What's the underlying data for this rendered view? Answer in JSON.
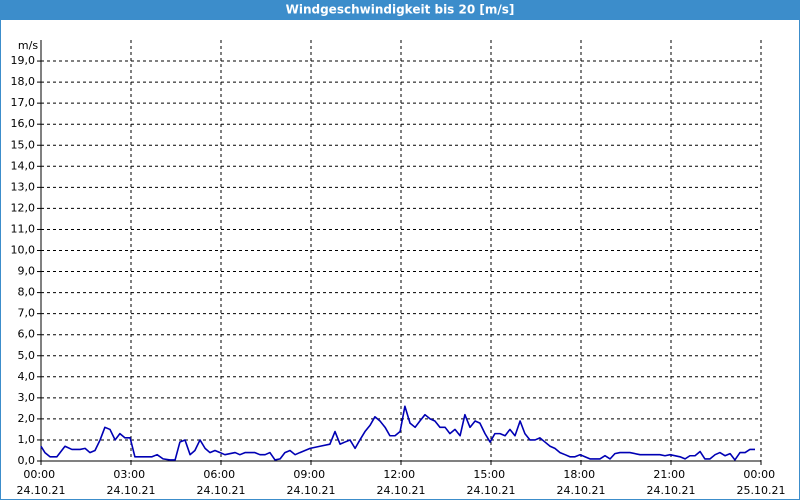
{
  "chart_data": {
    "type": "line",
    "title": "Windgeschwindigkeit bis 20 [m/s]",
    "y_label": "m/s",
    "xlim": [
      0,
      24
    ],
    "ylim": [
      0,
      20
    ],
    "grid": true,
    "xticks": [
      {
        "value": 0,
        "label": "00:00 24.10.21"
      },
      {
        "value": 3,
        "label": "03:00 24.10.21"
      },
      {
        "value": 6,
        "label": "06:00 24.10.21"
      },
      {
        "value": 9,
        "label": "09:00 24.10.21"
      },
      {
        "value": 12,
        "label": "12:00 24.10.21"
      },
      {
        "value": 15,
        "label": "15:00 24.10.21"
      },
      {
        "value": 18,
        "label": "18:00 24.10.21"
      },
      {
        "value": 21,
        "label": "21:00 24.10.21"
      },
      {
        "value": 24,
        "label": "00:00 25.10.21"
      }
    ],
    "yticks": [
      {
        "value": 0,
        "label": "0,0"
      },
      {
        "value": 1,
        "label": "1,0"
      },
      {
        "value": 2,
        "label": "2,0"
      },
      {
        "value": 3,
        "label": "3,0"
      },
      {
        "value": 4,
        "label": "4,0"
      },
      {
        "value": 5,
        "label": "5,0"
      },
      {
        "value": 6,
        "label": "6,0"
      },
      {
        "value": 7,
        "label": "7,0"
      },
      {
        "value": 8,
        "label": "8,0"
      },
      {
        "value": 9,
        "label": "9,0"
      },
      {
        "value": 10,
        "label": "10,0"
      },
      {
        "value": 11,
        "label": "11,0"
      },
      {
        "value": 12,
        "label": "12,0"
      },
      {
        "value": 13,
        "label": "13,0"
      },
      {
        "value": 14,
        "label": "14,0"
      },
      {
        "value": 15,
        "label": "15,0"
      },
      {
        "value": 16,
        "label": "16,0"
      },
      {
        "value": 17,
        "label": "17,0"
      },
      {
        "value": 18,
        "label": "18,0"
      },
      {
        "value": 19,
        "label": "19,0"
      }
    ],
    "color": "#0000b4",
    "x": [
      0,
      0.13,
      0.3,
      0.53,
      0.8,
      1.03,
      1.3,
      1.47,
      1.63,
      1.8,
      1.97,
      2.13,
      2.3,
      2.47,
      2.63,
      2.8,
      2.97,
      3.13,
      3.47,
      3.7,
      3.87,
      4.07,
      4.3,
      4.47,
      4.63,
      4.8,
      4.97,
      5.13,
      5.3,
      5.47,
      5.63,
      5.8,
      5.97,
      6.13,
      6.47,
      6.63,
      6.8,
      7.13,
      7.3,
      7.47,
      7.63,
      7.8,
      7.97,
      8.13,
      8.3,
      8.47,
      8.63,
      8.97,
      9.3,
      9.63,
      9.8,
      9.97,
      10.13,
      10.3,
      10.47,
      10.63,
      10.8,
      10.97,
      11.13,
      11.3,
      11.47,
      11.63,
      11.8,
      11.97,
      12.13,
      12.3,
      12.47,
      12.63,
      12.8,
      12.97,
      13.13,
      13.3,
      13.47,
      13.63,
      13.8,
      13.97,
      14.13,
      14.3,
      14.47,
      14.63,
      14.8,
      14.97,
      15.13,
      15.3,
      15.47,
      15.63,
      15.8,
      15.97,
      16.13,
      16.3,
      16.47,
      16.63,
      16.8,
      16.97,
      17.13,
      17.3,
      17.47,
      17.63,
      17.8,
      17.97,
      18.13,
      18.3,
      18.63,
      18.8,
      18.97,
      19.13,
      19.3,
      19.63,
      19.97,
      20.3,
      20.63,
      20.8,
      20.97,
      21.3,
      21.47,
      21.63,
      21.8,
      21.97,
      22.13,
      22.3,
      22.47,
      22.63,
      22.8,
      22.97,
      23.13,
      23.3,
      23.47,
      23.63,
      23.8
    ],
    "values": [
      0.7,
      0.4,
      0.2,
      0.2,
      0.7,
      0.55,
      0.55,
      0.6,
      0.4,
      0.5,
      1.0,
      1.6,
      1.5,
      1.0,
      1.3,
      1.1,
      1.1,
      0.2,
      0.2,
      0.2,
      0.3,
      0.1,
      0.05,
      0.05,
      0.9,
      1.0,
      0.3,
      0.5,
      1.0,
      0.6,
      0.4,
      0.5,
      0.4,
      0.3,
      0.4,
      0.3,
      0.4,
      0.4,
      0.3,
      0.3,
      0.4,
      0.05,
      0.1,
      0.4,
      0.5,
      0.3,
      0.4,
      0.6,
      0.7,
      0.8,
      1.4,
      0.8,
      0.9,
      1.0,
      0.6,
      1.0,
      1.4,
      1.7,
      2.1,
      1.9,
      1.6,
      1.2,
      1.2,
      1.4,
      2.6,
      1.8,
      1.6,
      1.9,
      2.2,
      2.0,
      1.9,
      1.6,
      1.6,
      1.3,
      1.5,
      1.2,
      2.2,
      1.6,
      1.9,
      1.8,
      1.3,
      0.9,
      1.3,
      1.3,
      1.2,
      1.5,
      1.2,
      1.9,
      1.3,
      1.0,
      1.0,
      1.1,
      0.9,
      0.7,
      0.6,
      0.4,
      0.3,
      0.2,
      0.2,
      0.3,
      0.2,
      0.1,
      0.1,
      0.25,
      0.1,
      0.35,
      0.4,
      0.4,
      0.3,
      0.3,
      0.3,
      0.25,
      0.3,
      0.2,
      0.1,
      0.25,
      0.25,
      0.45,
      0.1,
      0.1,
      0.3,
      0.4,
      0.25,
      0.35,
      0.05,
      0.4,
      0.4,
      0.55,
      0.55
    ]
  }
}
